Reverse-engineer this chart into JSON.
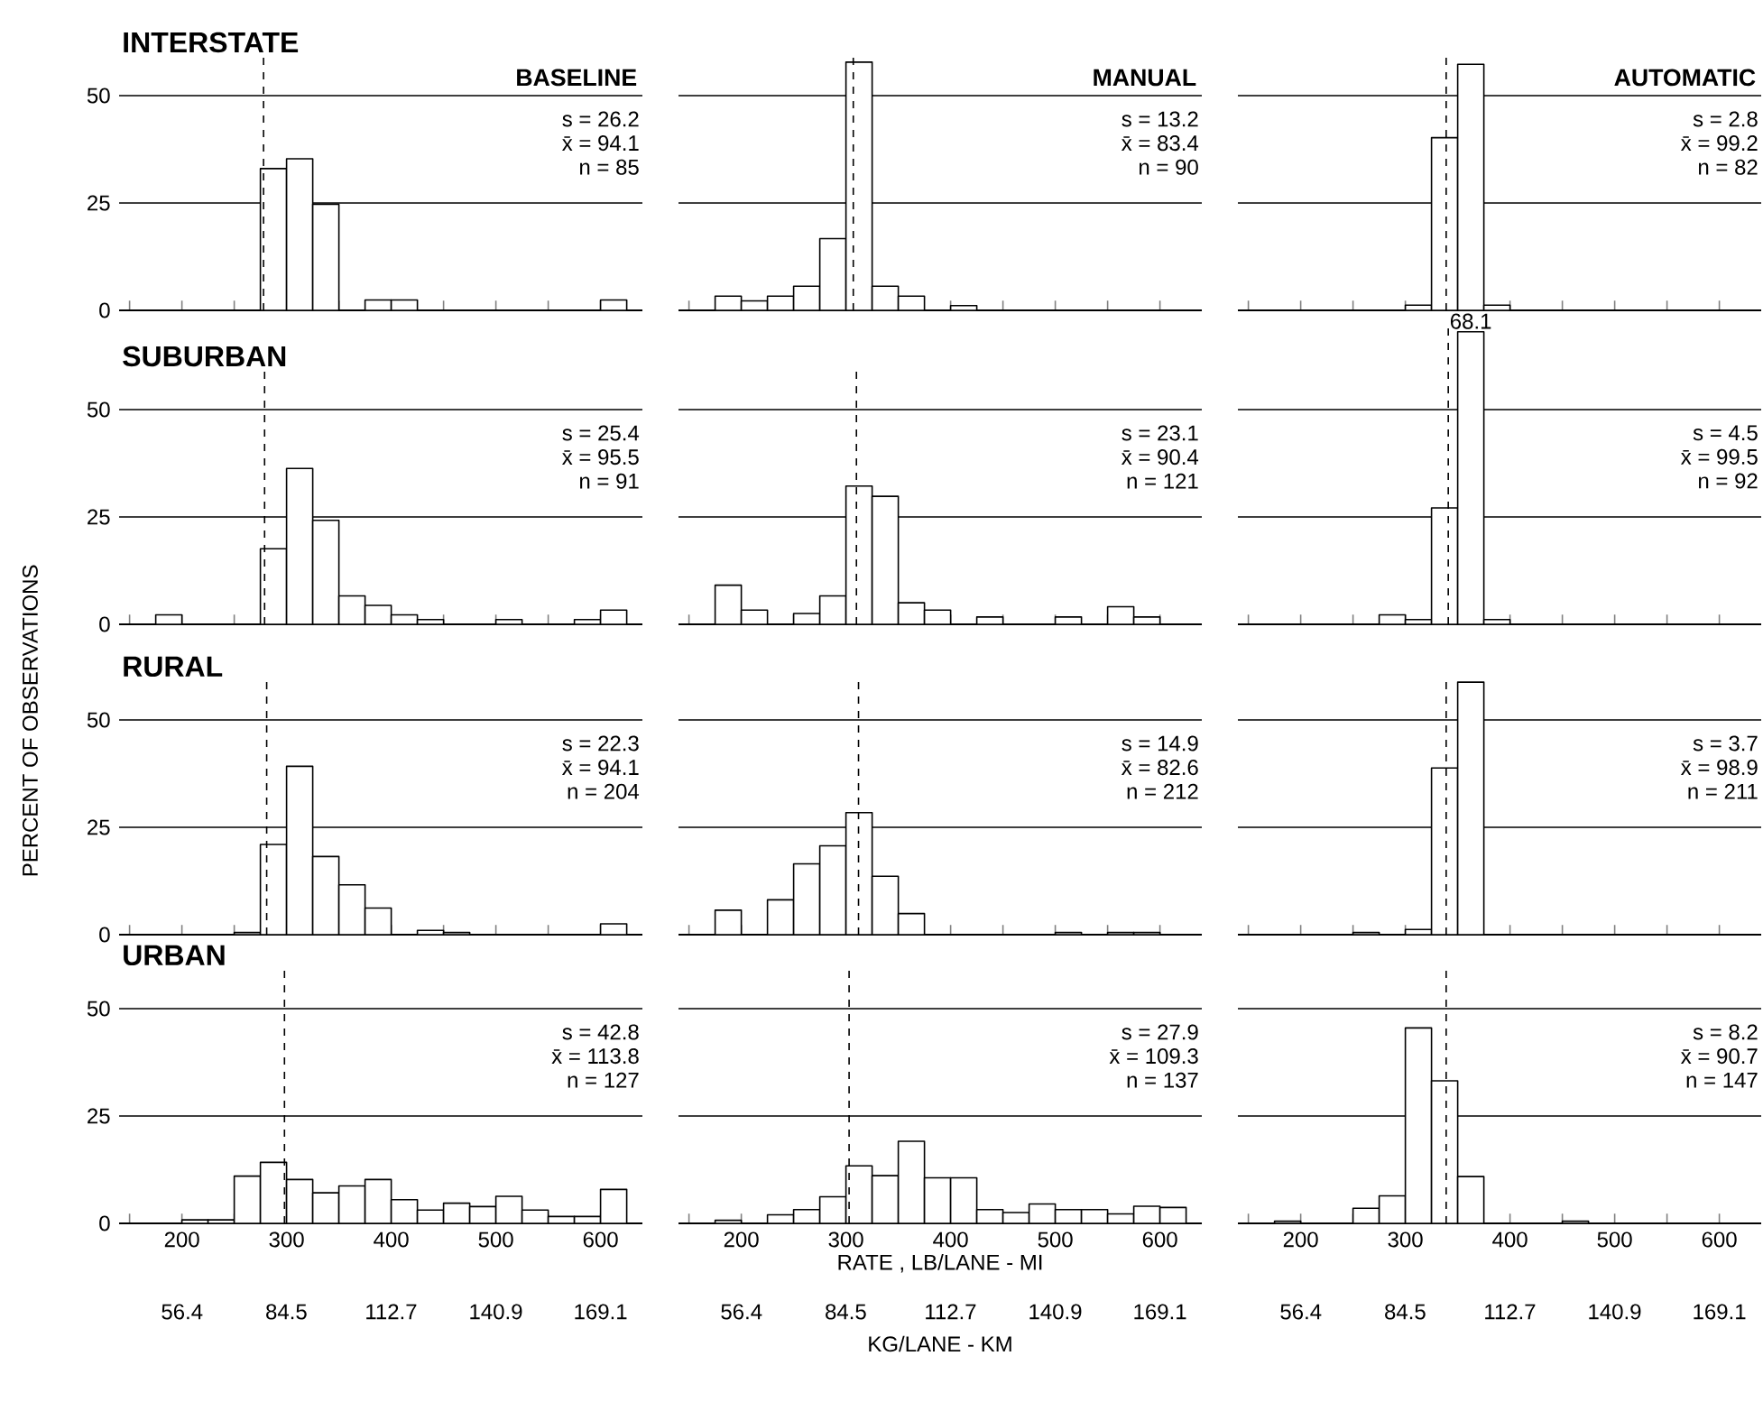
{
  "chart_data": [
    {
      "type": "histogram",
      "title": "BASELINE",
      "subtitle": "INTERSTATE",
      "color": "#000000",
      "bins": [
        150,
        175,
        200,
        225,
        250,
        275,
        300,
        325,
        350,
        375,
        400,
        425,
        450,
        475,
        500,
        525,
        550,
        575,
        600,
        625
      ],
      "values": [
        0,
        0,
        0,
        0,
        0,
        33.0,
        35.3,
        24.7,
        0,
        2.4,
        2.4,
        0,
        0,
        0,
        0,
        0,
        0,
        0,
        2.4
      ],
      "xlim": [
        140,
        640
      ],
      "ylim": [
        0,
        60
      ],
      "xticks": [
        {
          "value": 150,
          "label": null
        },
        200,
        {
          "value": 250,
          "label": null
        },
        300,
        {
          "value": 350,
          "label": null
        },
        400,
        {
          "value": 450,
          "label": null
        },
        500,
        {
          "value": 550,
          "label": null
        },
        600
      ],
      "yticks": [
        0,
        25,
        50
      ],
      "grid": "y",
      "tick_labels": "y",
      "ref_lines": [
        {
          "axis": "x",
          "value": 278,
          "line_style": "dashed"
        }
      ],
      "annotations": [
        "s = 26.2",
        "x̄ = 94.1",
        "n = 85"
      ]
    },
    {
      "type": "histogram",
      "title": "MANUAL",
      "color": "#000000",
      "bins": [
        150,
        175,
        200,
        225,
        250,
        275,
        300,
        325,
        350,
        375,
        400,
        425,
        450,
        475,
        500,
        525,
        550,
        575,
        600,
        625
      ],
      "values": [
        0,
        3.3,
        2.2,
        3.3,
        5.6,
        16.7,
        57.8,
        5.6,
        3.3,
        0,
        1.1,
        0,
        0,
        0,
        0,
        0,
        0,
        0,
        0
      ],
      "xlim": [
        140,
        640
      ],
      "ylim": [
        0,
        60
      ],
      "xticks": [
        {
          "value": 150,
          "label": null
        },
        200,
        {
          "value": 250,
          "label": null
        },
        300,
        {
          "value": 350,
          "label": null
        },
        400,
        {
          "value": 450,
          "label": null
        },
        500,
        {
          "value": 550,
          "label": null
        },
        600
      ],
      "yticks": [
        0,
        25,
        50
      ],
      "grid": "y",
      "tick_labels": false,
      "ref_lines": [
        {
          "axis": "x",
          "value": 307,
          "line_style": "dashed"
        }
      ],
      "annotations": [
        "s = 13.2",
        "x̄ = 83.4",
        "n = 90"
      ]
    },
    {
      "type": "histogram",
      "title": "AUTOMATIC",
      "color": "#000000",
      "bins": [
        150,
        175,
        200,
        225,
        250,
        275,
        300,
        325,
        350,
        375,
        400,
        425,
        450,
        475,
        500,
        525,
        550,
        575,
        600,
        625
      ],
      "values": [
        0,
        0,
        0,
        0,
        0,
        0,
        1.2,
        40.2,
        57.3,
        1.2,
        0,
        0,
        0,
        0,
        0,
        0,
        0,
        0,
        0
      ],
      "xlim": [
        140,
        640
      ],
      "ylim": [
        0,
        60
      ],
      "xticks": [
        {
          "value": 150,
          "label": null
        },
        200,
        {
          "value": 250,
          "label": null
        },
        300,
        {
          "value": 350,
          "label": null
        },
        400,
        {
          "value": 450,
          "label": null
        },
        500,
        {
          "value": 550,
          "label": null
        },
        600
      ],
      "yticks": [
        0,
        25,
        50
      ],
      "grid": "y",
      "tick_labels": false,
      "ref_lines": [
        {
          "axis": "x",
          "value": 339,
          "line_style": "dashed"
        }
      ],
      "annotations": [
        "s = 2.8",
        "x̄ = 99.2",
        "n = 82"
      ]
    },
    {
      "type": "histogram",
      "subtitle": "SUBURBAN",
      "color": "#000000",
      "bins": [
        150,
        175,
        200,
        225,
        250,
        275,
        300,
        325,
        350,
        375,
        400,
        425,
        450,
        475,
        500,
        525,
        550,
        575,
        600,
        625
      ],
      "values": [
        0,
        2.2,
        0,
        0,
        0,
        17.6,
        36.3,
        24.2,
        6.6,
        4.4,
        2.2,
        1.1,
        0,
        0,
        1.1,
        0,
        0,
        1.1,
        3.3
      ],
      "xlim": [
        140,
        640
      ],
      "ylim": [
        0,
        60
      ],
      "xticks": [
        {
          "value": 150,
          "label": null
        },
        200,
        {
          "value": 250,
          "label": null
        },
        300,
        {
          "value": 350,
          "label": null
        },
        400,
        {
          "value": 450,
          "label": null
        },
        500,
        {
          "value": 550,
          "label": null
        },
        600
      ],
      "yticks": [
        0,
        25,
        50
      ],
      "grid": "y",
      "tick_labels": "y",
      "ref_lines": [
        {
          "axis": "x",
          "value": 279,
          "line_style": "dashed"
        }
      ],
      "annotations": [
        "s = 25.4",
        "x̄ = 95.5",
        "n = 91"
      ]
    },
    {
      "type": "histogram",
      "color": "#000000",
      "bins": [
        150,
        175,
        200,
        225,
        250,
        275,
        300,
        325,
        350,
        375,
        400,
        425,
        450,
        475,
        500,
        525,
        550,
        575,
        600,
        625
      ],
      "values": [
        0,
        9.1,
        3.3,
        0,
        2.5,
        6.6,
        32.2,
        29.8,
        5.0,
        3.3,
        0,
        1.7,
        0,
        0,
        1.7,
        0,
        4.1,
        1.7,
        0
      ],
      "xlim": [
        140,
        640
      ],
      "ylim": [
        0,
        60
      ],
      "xticks": [
        {
          "value": 150,
          "label": null
        },
        200,
        {
          "value": 250,
          "label": null
        },
        300,
        {
          "value": 350,
          "label": null
        },
        400,
        {
          "value": 450,
          "label": null
        },
        500,
        {
          "value": 550,
          "label": null
        },
        600
      ],
      "yticks": [
        0,
        25,
        50
      ],
      "grid": "y",
      "tick_labels": false,
      "ref_lines": [
        {
          "axis": "x",
          "value": 310,
          "line_style": "dashed"
        }
      ],
      "annotations": [
        "s = 23.1",
        "x̄ = 90.4",
        "n = 121"
      ]
    },
    {
      "type": "histogram",
      "color": "#000000",
      "bins": [
        150,
        175,
        200,
        225,
        250,
        275,
        300,
        325,
        350,
        375,
        400,
        425,
        450,
        475,
        500,
        525,
        550,
        575,
        600,
        625
      ],
      "values": [
        0,
        0,
        0,
        0,
        0,
        2.2,
        1.1,
        27.1,
        68.1,
        1.1,
        0,
        0,
        0,
        0,
        0,
        0,
        0,
        0,
        0
      ],
      "value_labels": [
        null,
        null,
        null,
        null,
        null,
        null,
        null,
        null,
        "68.1",
        null,
        null,
        null,
        null,
        null,
        null,
        null,
        null,
        null,
        null
      ],
      "xlim": [
        140,
        640
      ],
      "ylim": [
        0,
        70
      ],
      "xticks": [
        {
          "value": 150,
          "label": null
        },
        200,
        {
          "value": 250,
          "label": null
        },
        300,
        {
          "value": 350,
          "label": null
        },
        400,
        {
          "value": 450,
          "label": null
        },
        500,
        {
          "value": 550,
          "label": null
        },
        600
      ],
      "yticks": [
        0,
        25,
        50
      ],
      "grid": "y",
      "tick_labels": false,
      "ref_lines": [
        {
          "axis": "x",
          "value": 341,
          "line_style": "dashed"
        }
      ],
      "annotations": [
        "s = 4.5",
        "x̄ = 99.5",
        "n = 92"
      ]
    },
    {
      "type": "histogram",
      "subtitle": "RURAL",
      "ylabel": "PERCENT OF OBSERVATIONS",
      "color": "#000000",
      "bins": [
        150,
        175,
        200,
        225,
        250,
        275,
        300,
        325,
        350,
        375,
        400,
        425,
        450,
        475,
        500,
        525,
        550,
        575,
        600,
        625
      ],
      "values": [
        0,
        0,
        0,
        0,
        0.5,
        21.0,
        39.2,
        18.2,
        11.6,
        6.2,
        0,
        1.0,
        0.5,
        0,
        0,
        0,
        0,
        0,
        2.5
      ],
      "xlim": [
        140,
        640
      ],
      "ylim": [
        0,
        60
      ],
      "xticks": [
        {
          "value": 150,
          "label": null
        },
        200,
        {
          "value": 250,
          "label": null
        },
        300,
        {
          "value": 350,
          "label": null
        },
        400,
        {
          "value": 450,
          "label": null
        },
        500,
        {
          "value": 550,
          "label": null
        },
        600
      ],
      "yticks": [
        0,
        25,
        50
      ],
      "grid": "y",
      "tick_labels": "y",
      "ref_lines": [
        {
          "axis": "x",
          "value": 281,
          "line_style": "dashed"
        }
      ],
      "annotations": [
        "s = 22.3",
        "x̄ = 94.1",
        "n = 204"
      ]
    },
    {
      "type": "histogram",
      "color": "#000000",
      "bins": [
        150,
        175,
        200,
        225,
        250,
        275,
        300,
        325,
        350,
        375,
        400,
        425,
        450,
        475,
        500,
        525,
        550,
        575,
        600,
        625
      ],
      "values": [
        0,
        5.7,
        0,
        8.1,
        16.5,
        20.7,
        28.4,
        13.6,
        4.9,
        0,
        0,
        0,
        0,
        0,
        0.5,
        0,
        0.5,
        0.5,
        0
      ],
      "xlim": [
        140,
        640
      ],
      "ylim": [
        0,
        60
      ],
      "xticks": [
        {
          "value": 150,
          "label": null
        },
        200,
        {
          "value": 250,
          "label": null
        },
        300,
        {
          "value": 350,
          "label": null
        },
        400,
        {
          "value": 450,
          "label": null
        },
        500,
        {
          "value": 550,
          "label": null
        },
        600
      ],
      "yticks": [
        0,
        25,
        50
      ],
      "grid": "y",
      "tick_labels": false,
      "ref_lines": [
        {
          "axis": "x",
          "value": 312,
          "line_style": "dashed"
        }
      ],
      "annotations": [
        "s = 14.9",
        "x̄ = 82.6",
        "n = 212"
      ]
    },
    {
      "type": "histogram",
      "color": "#000000",
      "bins": [
        150,
        175,
        200,
        225,
        250,
        275,
        300,
        325,
        350,
        375,
        400,
        425,
        450,
        475,
        500,
        525,
        550,
        575,
        600,
        625
      ],
      "values": [
        0,
        0,
        0,
        0,
        0.5,
        0,
        1.2,
        38.8,
        58.8,
        0,
        0,
        0,
        0,
        0,
        0,
        0,
        0,
        0,
        0
      ],
      "xlim": [
        140,
        640
      ],
      "ylim": [
        0,
        60
      ],
      "xticks": [
        {
          "value": 150,
          "label": null
        },
        200,
        {
          "value": 250,
          "label": null
        },
        300,
        {
          "value": 350,
          "label": null
        },
        400,
        {
          "value": 450,
          "label": null
        },
        500,
        {
          "value": 550,
          "label": null
        },
        600
      ],
      "yticks": [
        0,
        25,
        50
      ],
      "grid": "y",
      "tick_labels": false,
      "ref_lines": [
        {
          "axis": "x",
          "value": 339,
          "line_style": "dashed"
        }
      ],
      "annotations": [
        "s = 3.7",
        "x̄ = 98.9",
        "n = 211"
      ]
    },
    {
      "type": "histogram",
      "subtitle": "URBAN",
      "color": "#000000",
      "bins": [
        150,
        175,
        200,
        225,
        250,
        275,
        300,
        325,
        350,
        375,
        400,
        425,
        450,
        475,
        500,
        525,
        550,
        575,
        600,
        625
      ],
      "values": [
        0,
        0,
        0.8,
        0.8,
        11.0,
        14.2,
        10.2,
        7.1,
        8.7,
        10.2,
        5.5,
        3.1,
        4.7,
        3.9,
        6.3,
        3.1,
        1.6,
        1.6,
        7.9
      ],
      "xlim": [
        140,
        640
      ],
      "ylim": [
        0,
        60
      ],
      "xticks": [
        {
          "value": 150,
          "label": null
        },
        200,
        {
          "value": 250,
          "label": null
        },
        300,
        {
          "value": 350,
          "label": null
        },
        400,
        {
          "value": 450,
          "label": null
        },
        500,
        {
          "value": 550,
          "label": null
        },
        600
      ],
      "yticks": [
        0,
        25,
        50
      ],
      "x2lim": [
        39.46,
        180.38
      ],
      "x2ticks": [
        56.4,
        84.5,
        112.7,
        140.9,
        169.1
      ],
      "grid": "y",
      "ref_lines": [
        {
          "axis": "x",
          "value": 298,
          "line_style": "dashed"
        }
      ],
      "annotations": [
        "s = 42.8",
        "x̄ = 113.8",
        "n = 127"
      ]
    },
    {
      "type": "histogram",
      "xlabel": "RATE , LB/LANE - MI",
      "x2label": "KG/LANE - KM",
      "color": "#000000",
      "bins": [
        150,
        175,
        200,
        225,
        250,
        275,
        300,
        325,
        350,
        375,
        400,
        425,
        450,
        475,
        500,
        525,
        550,
        575,
        600,
        625
      ],
      "values": [
        0,
        0.7,
        0,
        2.0,
        3.2,
        6.2,
        13.4,
        11.1,
        19.1,
        10.6,
        10.6,
        3.2,
        2.5,
        4.5,
        3.2,
        3.2,
        2.2,
        4.0,
        3.7
      ],
      "xlim": [
        140,
        640
      ],
      "ylim": [
        0,
        60
      ],
      "xticks": [
        {
          "value": 150,
          "label": null
        },
        200,
        {
          "value": 250,
          "label": null
        },
        300,
        {
          "value": 350,
          "label": null
        },
        400,
        {
          "value": 450,
          "label": null
        },
        500,
        {
          "value": 550,
          "label": null
        },
        600
      ],
      "yticks": [
        0,
        25,
        50
      ],
      "x2lim": [
        39.46,
        180.38
      ],
      "x2ticks": [
        56.4,
        84.5,
        112.7,
        140.9,
        169.1
      ],
      "grid": "y",
      "tick_labels": "x",
      "ref_lines": [
        {
          "axis": "x",
          "value": 303,
          "line_style": "dashed"
        }
      ],
      "annotations": [
        "s = 27.9",
        "x̄ = 109.3",
        "n = 137"
      ]
    },
    {
      "type": "histogram",
      "color": "#000000",
      "bins": [
        150,
        175,
        200,
        225,
        250,
        275,
        300,
        325,
        350,
        375,
        400,
        425,
        450,
        475,
        500,
        525,
        550,
        575,
        600,
        625
      ],
      "values": [
        0,
        0.5,
        0,
        0,
        3.5,
        6.4,
        45.5,
        33.2,
        10.9,
        0,
        0,
        0,
        0.5,
        0,
        0,
        0,
        0,
        0,
        0
      ],
      "xlim": [
        140,
        640
      ],
      "ylim": [
        0,
        60
      ],
      "xticks": [
        {
          "value": 150,
          "label": null
        },
        200,
        {
          "value": 250,
          "label": null
        },
        300,
        {
          "value": 350,
          "label": null
        },
        400,
        {
          "value": 450,
          "label": null
        },
        500,
        {
          "value": 550,
          "label": null
        },
        600
      ],
      "yticks": [
        0,
        25,
        50
      ],
      "x2lim": [
        39.46,
        180.38
      ],
      "x2ticks": [
        56.4,
        84.5,
        112.7,
        140.9,
        169.1
      ],
      "grid": "y",
      "tick_labels": "x",
      "ref_lines": [
        {
          "axis": "x",
          "value": 339,
          "line_style": "dashed"
        }
      ],
      "annotations": [
        "s = 8.2",
        "x̄ = 90.7",
        "n = 147"
      ]
    }
  ]
}
